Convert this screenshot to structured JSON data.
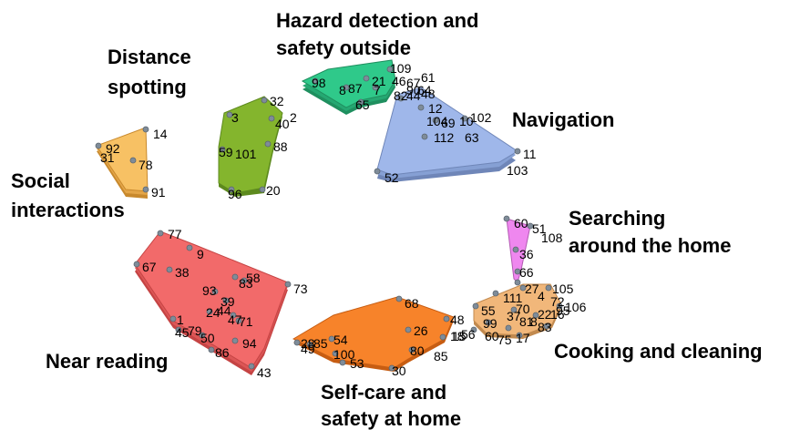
{
  "clusters": [
    {
      "key": "hazard",
      "lines": [
        "Hazard detection and",
        "safety outside"
      ],
      "color": "#2fc98a",
      "edge": "#1f8f5f",
      "points": [
        "109",
        "61",
        "21",
        "46",
        "67",
        "7",
        "87",
        "98",
        "82",
        "90",
        "64",
        "65",
        "8"
      ]
    },
    {
      "key": "navigation",
      "lines": [
        "Navigation"
      ],
      "color": "#9fb7ea",
      "edge": "#6f86b8",
      "points": [
        "44",
        "48",
        "12",
        "102",
        "104",
        "10",
        "69",
        "112",
        "63",
        "11",
        "103",
        "52"
      ]
    },
    {
      "key": "distance",
      "lines": [
        "Distance",
        "spotting"
      ],
      "color": "#84b52d",
      "edge": "#5d8a1e",
      "points": [
        "32",
        "3",
        "40",
        "2",
        "88",
        "59",
        "101",
        "96",
        "20"
      ]
    },
    {
      "key": "social",
      "lines": [
        "Social",
        "interactions"
      ],
      "color": "#f7c164",
      "edge": "#c8892d",
      "points": [
        "14",
        "92",
        "31",
        "78",
        "91"
      ]
    },
    {
      "key": "searching",
      "lines": [
        "Searching",
        "around the home"
      ],
      "color": "#ef87ef",
      "edge": "#b25ab2",
      "points": [
        "60",
        "51",
        "108",
        "36",
        "66"
      ]
    },
    {
      "key": "cooking",
      "lines": [
        "Cooking and cleaning"
      ],
      "color": "#f1b77a",
      "edge": "#c28a4f",
      "points": [
        "27",
        "105",
        "111",
        "4",
        "72",
        "106",
        "55",
        "70",
        "22",
        "16",
        "95",
        "37",
        "99",
        "81",
        "8",
        "83",
        "56",
        "60",
        "75",
        "17",
        "15"
      ]
    },
    {
      "key": "near_reading",
      "lines": [
        "Near reading"
      ],
      "color": "#f26a6a",
      "edge": "#c54444",
      "points": [
        "77",
        "9",
        "67",
        "38",
        "58",
        "83",
        "93",
        "73",
        "39",
        "24",
        "44",
        "47",
        "71",
        "1",
        "45",
        "79",
        "50",
        "94",
        "86",
        "43"
      ]
    },
    {
      "key": "selfcare",
      "lines": [
        "Self-care and",
        "safety at home"
      ],
      "color": "#f7832a",
      "edge": "#c75d12",
      "points": [
        "68",
        "48",
        "26",
        "18",
        "54",
        "28",
        "85",
        "49",
        "100",
        "80",
        "85",
        "53",
        "30"
      ]
    }
  ]
}
